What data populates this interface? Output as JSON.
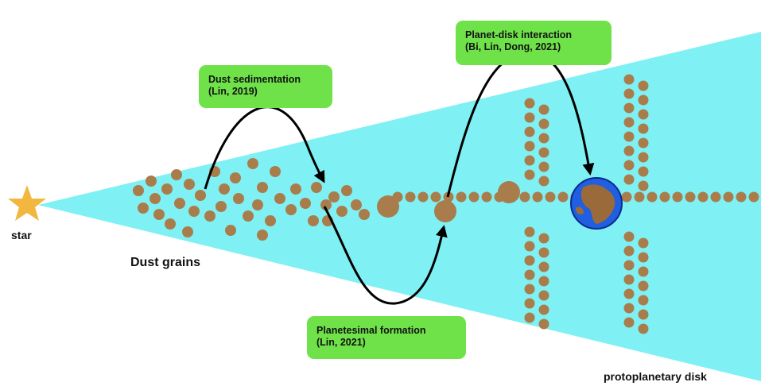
{
  "labels": {
    "star": "star",
    "dust_grains": "Dust grains",
    "disk": "protoplanetary disk"
  },
  "callouts": {
    "sedimentation": {
      "line1": "Dust sedimentation",
      "line2": "(Lin, 2019)"
    },
    "planetesimal": {
      "line1": "Planetesimal formation",
      "line2": "(Lin, 2021)"
    },
    "interaction": {
      "line1": "Planet-disk interaction",
      "line2": "(Bi, Lin, Dong, 2021)"
    }
  },
  "colors": {
    "disk": "#7ff0f3",
    "star": "#f1b73e",
    "grain": "#a97d4b",
    "callout": "#6fe24a",
    "planet_ocean": "#1f5fe0",
    "planet_land": "#9a6a3a",
    "arrow": "#000000"
  }
}
